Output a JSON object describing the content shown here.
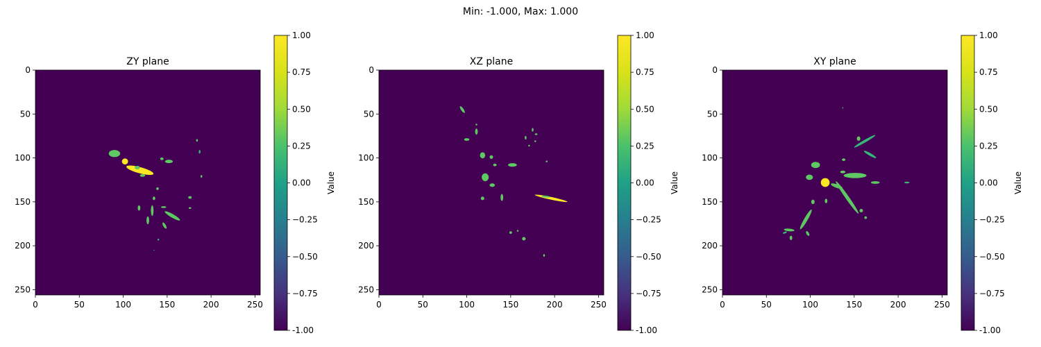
{
  "suptitle": "Min: -1.000, Max: 1.000",
  "colorbar": {
    "label": "Value",
    "ticks": [
      "-1.00",
      "−0.75",
      "−0.50",
      "−0.25",
      "0.00",
      "0.25",
      "0.50",
      "0.75",
      "1.00"
    ],
    "tick_values": [
      -1.0,
      -0.75,
      -0.5,
      -0.25,
      0.0,
      0.25,
      0.5,
      0.75,
      1.0
    ],
    "vmin": -1.0,
    "vmax": 1.0,
    "colormap": "viridis"
  },
  "colors": {
    "background": "#440154",
    "low": "#440154",
    "mid": "#21918c",
    "green": "#5ec962",
    "high": "#fde725"
  },
  "chart_data": [
    {
      "type": "heatmap",
      "title": "ZY plane",
      "xlim": [
        0,
        256
      ],
      "ylim": [
        256,
        0
      ],
      "xticks": [
        0,
        50,
        100,
        150,
        200,
        250
      ],
      "yticks": [
        0,
        50,
        100,
        150,
        200,
        250
      ],
      "background_value": -1.0,
      "blobs": [
        {
          "x": 90,
          "y": 95,
          "w": 13,
          "h": 8,
          "value": 0.5
        },
        {
          "x": 102,
          "y": 104,
          "w": 7,
          "h": 7,
          "value": 1.0
        },
        {
          "x": 119,
          "y": 114,
          "w": 32,
          "h": 7,
          "angle": 15,
          "value": 1.0
        },
        {
          "x": 116,
          "y": 111,
          "w": 6,
          "h": 4,
          "value": 0.5
        },
        {
          "x": 122,
          "y": 120,
          "w": 6,
          "h": 3,
          "value": 0.5
        },
        {
          "x": 152,
          "y": 104,
          "w": 9,
          "h": 4,
          "value": 0.5
        },
        {
          "x": 144,
          "y": 101,
          "w": 4,
          "h": 3,
          "value": 0.5
        },
        {
          "x": 184,
          "y": 80,
          "w": 2,
          "h": 3,
          "value": 0.5
        },
        {
          "x": 187,
          "y": 93,
          "w": 2,
          "h": 4,
          "value": 0.25
        },
        {
          "x": 189,
          "y": 121,
          "w": 2,
          "h": 3,
          "value": 0.5
        },
        {
          "x": 139,
          "y": 135,
          "w": 3,
          "h": 3,
          "value": 0.5
        },
        {
          "x": 176,
          "y": 145,
          "w": 4,
          "h": 3,
          "value": 0.5
        },
        {
          "x": 135,
          "y": 146,
          "w": 3,
          "h": 4,
          "value": 0.5
        },
        {
          "x": 176,
          "y": 157,
          "w": 3,
          "h": 2,
          "value": 0.5
        },
        {
          "x": 118,
          "y": 157,
          "w": 3,
          "h": 6,
          "value": 0.5
        },
        {
          "x": 133,
          "y": 160,
          "w": 3,
          "h": 12,
          "value": 0.5
        },
        {
          "x": 146,
          "y": 156,
          "w": 6,
          "h": 2,
          "value": 0.5
        },
        {
          "x": 156,
          "y": 166,
          "w": 20,
          "h": 4,
          "angle": 30,
          "value": 0.5
        },
        {
          "x": 128,
          "y": 171,
          "w": 3,
          "h": 9,
          "value": 0.5
        },
        {
          "x": 147,
          "y": 177,
          "w": 3,
          "h": 8,
          "angle": -30,
          "value": 0.5
        },
        {
          "x": 140,
          "y": 193,
          "w": 2,
          "h": 2,
          "value": 0.25
        },
        {
          "x": 135,
          "y": 205,
          "w": 1,
          "h": 1,
          "value": 0.25
        }
      ]
    },
    {
      "type": "heatmap",
      "title": "XZ plane",
      "xlim": [
        0,
        256
      ],
      "ylim": [
        256,
        0
      ],
      "xticks": [
        0,
        50,
        100,
        150,
        200,
        250
      ],
      "yticks": [
        0,
        50,
        100,
        150,
        200,
        250
      ],
      "background_value": -1.0,
      "blobs": [
        {
          "x": 95,
          "y": 45,
          "w": 3,
          "h": 9,
          "angle": -35,
          "value": 0.5
        },
        {
          "x": 111,
          "y": 62,
          "w": 2,
          "h": 2,
          "value": 0.5
        },
        {
          "x": 111,
          "y": 70,
          "w": 3,
          "h": 7,
          "value": 0.5
        },
        {
          "x": 100,
          "y": 79,
          "w": 6,
          "h": 3,
          "value": 0.5
        },
        {
          "x": 118,
          "y": 97,
          "w": 6,
          "h": 7,
          "value": 0.5
        },
        {
          "x": 128,
          "y": 99,
          "w": 4,
          "h": 4,
          "value": 0.5
        },
        {
          "x": 132,
          "y": 108,
          "w": 4,
          "h": 3,
          "value": 0.5
        },
        {
          "x": 152,
          "y": 108,
          "w": 10,
          "h": 4,
          "value": 0.5
        },
        {
          "x": 175,
          "y": 68,
          "w": 2,
          "h": 4,
          "value": 0.5
        },
        {
          "x": 179,
          "y": 73,
          "w": 3,
          "h": 2,
          "value": 0.5
        },
        {
          "x": 167,
          "y": 77,
          "w": 2,
          "h": 4,
          "value": 0.5
        },
        {
          "x": 178,
          "y": 81,
          "w": 2,
          "h": 2,
          "value": 0.5
        },
        {
          "x": 171,
          "y": 86,
          "w": 2,
          "h": 2,
          "value": 0.5
        },
        {
          "x": 191,
          "y": 104,
          "w": 2,
          "h": 2,
          "value": 0.5
        },
        {
          "x": 121,
          "y": 122,
          "w": 8,
          "h": 9,
          "value": 0.5
        },
        {
          "x": 129,
          "y": 131,
          "w": 6,
          "h": 4,
          "value": 0.5
        },
        {
          "x": 118,
          "y": 146,
          "w": 4,
          "h": 4,
          "value": 0.5
        },
        {
          "x": 140,
          "y": 145,
          "w": 3,
          "h": 8,
          "value": 0.5
        },
        {
          "x": 196,
          "y": 146,
          "w": 38,
          "h": 3,
          "angle": 12,
          "value": 1.0
        },
        {
          "x": 190,
          "y": 144,
          "w": 10,
          "h": 2,
          "angle": 5,
          "value": 0.5
        },
        {
          "x": 150,
          "y": 185,
          "w": 3,
          "h": 3,
          "value": 0.5
        },
        {
          "x": 158,
          "y": 183,
          "w": 2,
          "h": 2,
          "value": 0.5
        },
        {
          "x": 165,
          "y": 192,
          "w": 4,
          "h": 4,
          "value": 0.5
        },
        {
          "x": 188,
          "y": 211,
          "w": 2,
          "h": 3,
          "value": 0.5
        }
      ]
    },
    {
      "type": "heatmap",
      "title": "XY plane",
      "xlim": [
        0,
        256
      ],
      "ylim": [
        256,
        0
      ],
      "xticks": [
        0,
        50,
        100,
        150,
        200,
        250
      ],
      "yticks": [
        0,
        50,
        100,
        150,
        200,
        250
      ],
      "background_value": -1.0,
      "blobs": [
        {
          "x": 137,
          "y": 43,
          "w": 1,
          "h": 2,
          "value": 0.25
        },
        {
          "x": 155,
          "y": 78,
          "w": 4,
          "h": 5,
          "value": 0.5
        },
        {
          "x": 162,
          "y": 81,
          "w": 28,
          "h": 3,
          "angle": -30,
          "value": 0.25
        },
        {
          "x": 168,
          "y": 96,
          "w": 16,
          "h": 3,
          "angle": 30,
          "value": 0.25
        },
        {
          "x": 138,
          "y": 102,
          "w": 4,
          "h": 3,
          "value": 0.5
        },
        {
          "x": 106,
          "y": 108,
          "w": 10,
          "h": 7,
          "value": 0.5
        },
        {
          "x": 151,
          "y": 120,
          "w": 26,
          "h": 6,
          "value": 0.5
        },
        {
          "x": 137,
          "y": 116,
          "w": 6,
          "h": 3,
          "value": 0.5
        },
        {
          "x": 174,
          "y": 128,
          "w": 10,
          "h": 3,
          "value": 0.5
        },
        {
          "x": 210,
          "y": 128,
          "w": 6,
          "h": 2,
          "value": 0.25
        },
        {
          "x": 99,
          "y": 122,
          "w": 8,
          "h": 6,
          "value": 0.5
        },
        {
          "x": 117,
          "y": 128,
          "w": 10,
          "h": 10,
          "value": 1.0
        },
        {
          "x": 142,
          "y": 145,
          "w": 45,
          "h": 4,
          "angle": 55,
          "value": 0.5
        },
        {
          "x": 130,
          "y": 132,
          "w": 14,
          "h": 4,
          "angle": 20,
          "value": 0.5
        },
        {
          "x": 118,
          "y": 149,
          "w": 3,
          "h": 5,
          "value": 0.5
        },
        {
          "x": 103,
          "y": 150,
          "w": 4,
          "h": 5,
          "value": 0.5
        },
        {
          "x": 95,
          "y": 170,
          "w": 26,
          "h": 4,
          "angle": -60,
          "value": 0.5
        },
        {
          "x": 76,
          "y": 182,
          "w": 12,
          "h": 3,
          "angle": 5,
          "value": 0.5
        },
        {
          "x": 71,
          "y": 185,
          "w": 5,
          "h": 2,
          "angle": -20,
          "value": 0.25
        },
        {
          "x": 78,
          "y": 191,
          "w": 3,
          "h": 5,
          "value": 0.5
        },
        {
          "x": 97,
          "y": 186,
          "w": 3,
          "h": 6,
          "angle": -30,
          "value": 0.5
        },
        {
          "x": 158,
          "y": 160,
          "w": 4,
          "h": 4,
          "value": 0.5
        },
        {
          "x": 163,
          "y": 168,
          "w": 3,
          "h": 3,
          "value": 0.5
        }
      ]
    }
  ]
}
